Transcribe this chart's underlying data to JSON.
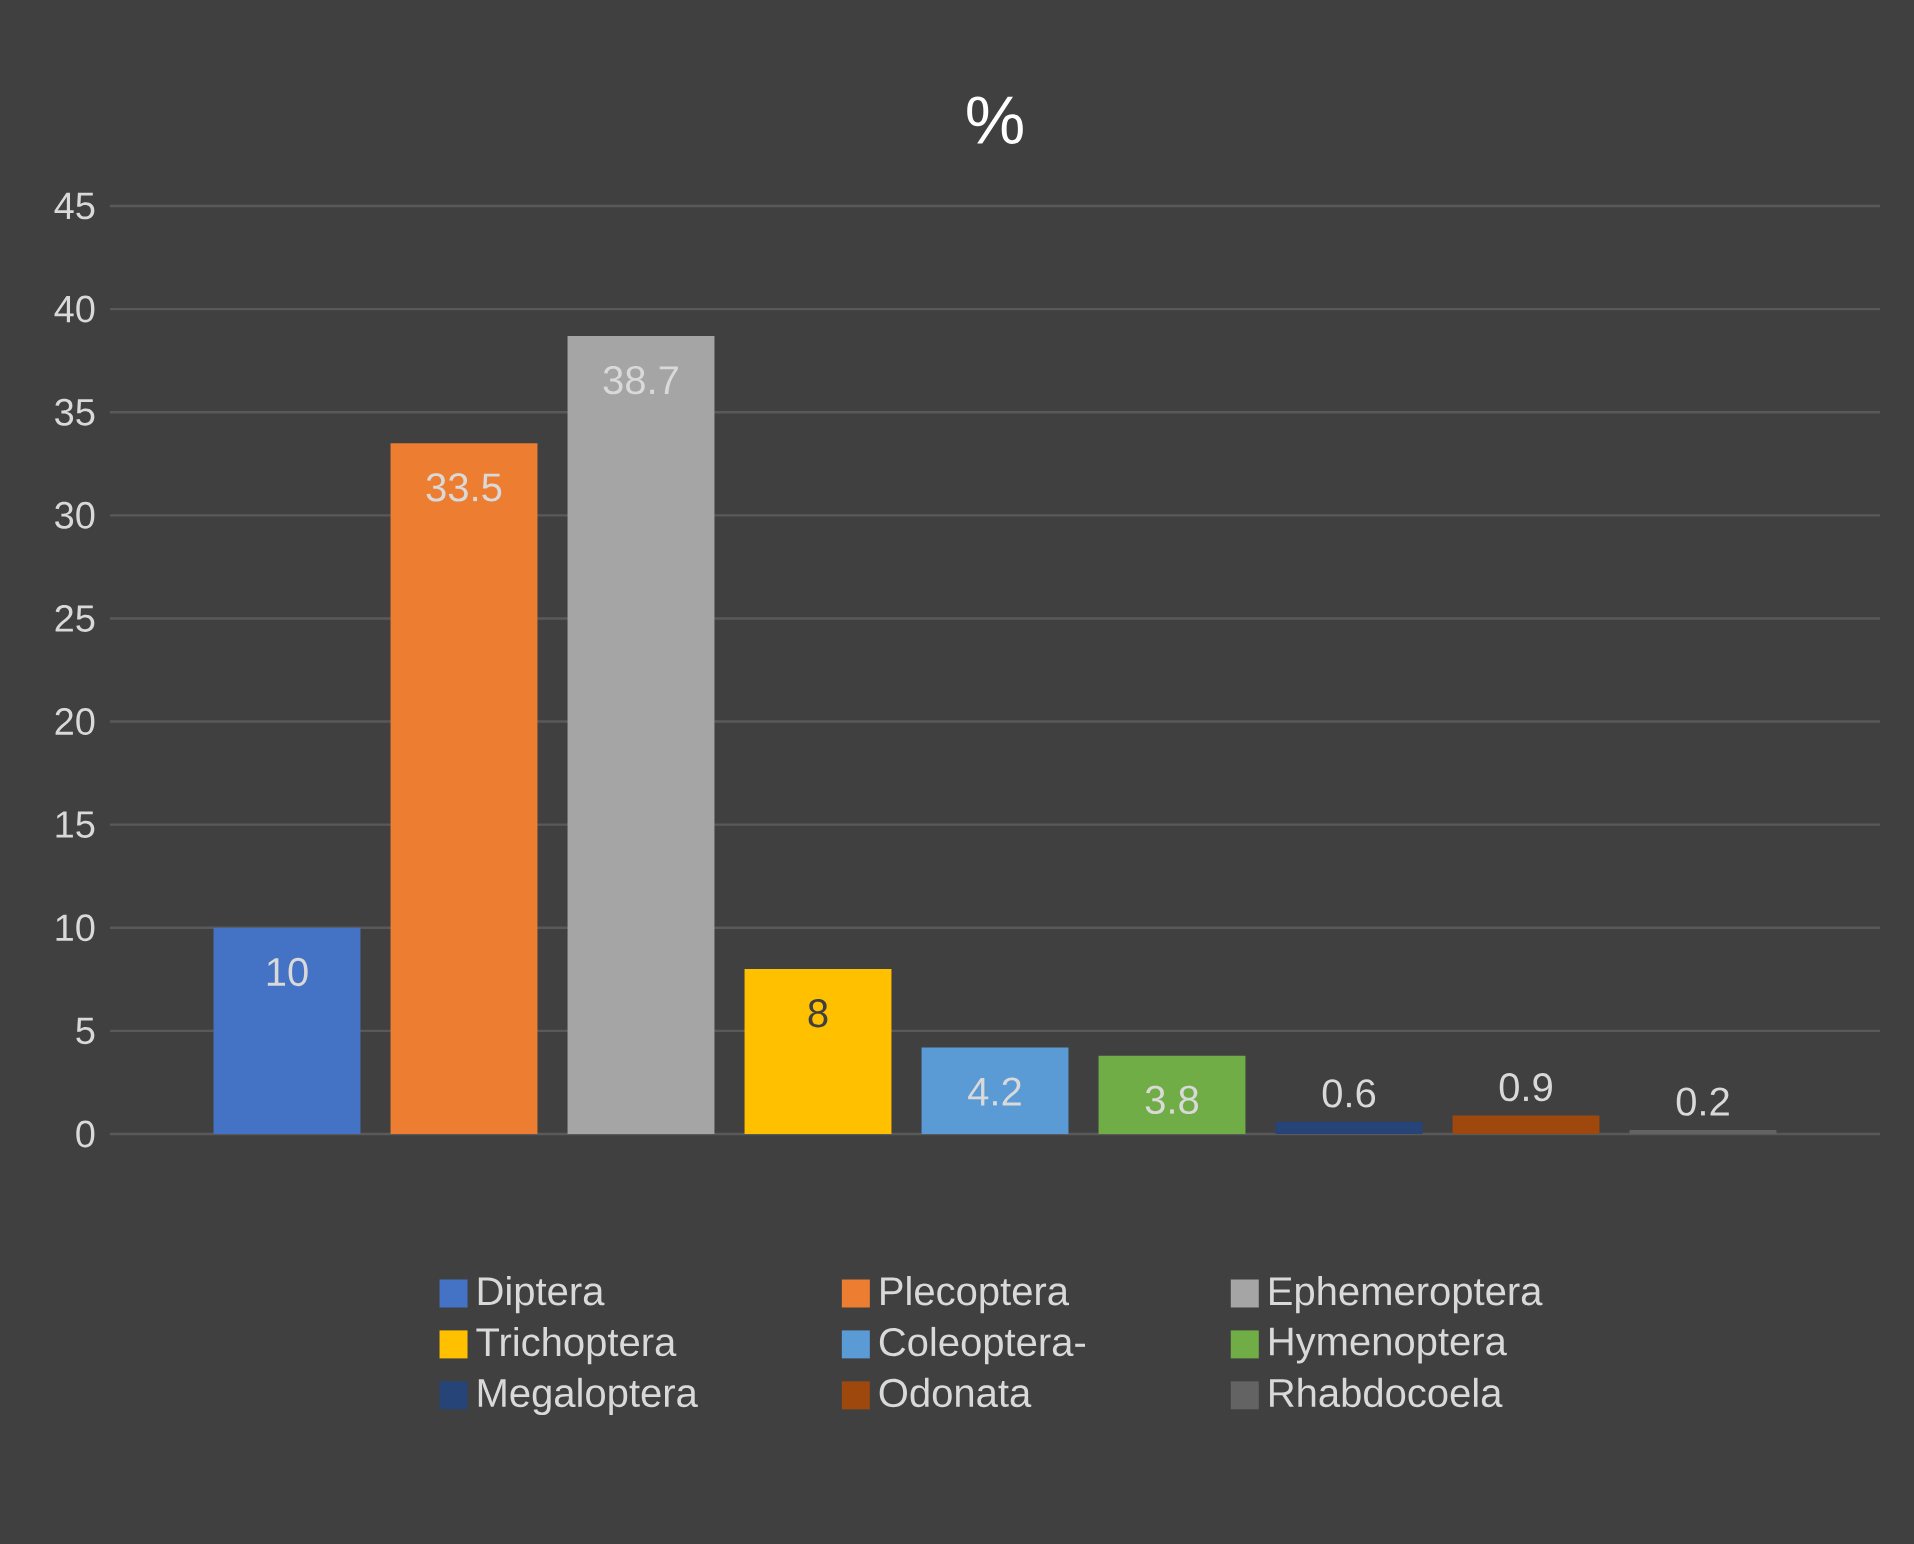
{
  "chart_data": {
    "type": "bar",
    "title": "%",
    "categories": [
      null
    ],
    "ylim": [
      0,
      45
    ],
    "yticks": [
      0,
      5,
      10,
      15,
      20,
      25,
      30,
      35,
      40,
      45
    ],
    "grid": "y",
    "legend": "bottom",
    "data_labels": true,
    "series": [
      {
        "name": "Diptera",
        "color": "#4472c4",
        "values": [
          10
        ]
      },
      {
        "name": "Plecoptera",
        "color": "#ed7d31",
        "values": [
          33.5
        ]
      },
      {
        "name": "Ephemeroptera",
        "color": "#a5a5a5",
        "values": [
          38.7
        ]
      },
      {
        "name": "Trichoptera",
        "color": "#ffc000",
        "values": [
          8
        ]
      },
      {
        "name": "Coleoptera-",
        "color": "#5b9bd5",
        "values": [
          4.2
        ]
      },
      {
        "name": "Hymenoptera",
        "color": "#70ad47",
        "values": [
          3.8
        ]
      },
      {
        "name": "Megaloptera",
        "color": "#264478",
        "values": [
          0.6
        ]
      },
      {
        "name": "Odonata",
        "color": "#9e480e",
        "values": [
          0.9
        ]
      },
      {
        "name": "Rhabdocoela",
        "color": "#636363",
        "values": [
          0.2
        ]
      }
    ]
  }
}
